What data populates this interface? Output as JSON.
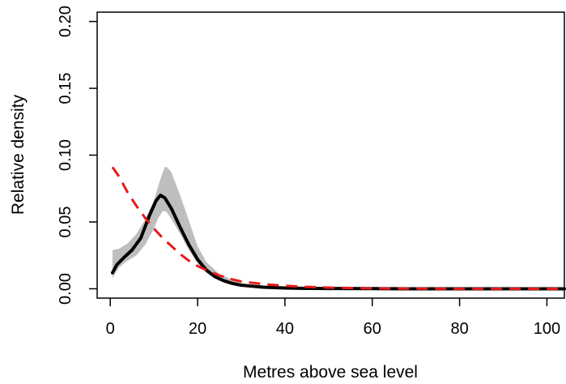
{
  "chart_data": {
    "type": "line",
    "title": "",
    "xlabel": "Metres above sea level",
    "ylabel": "Relative density",
    "xlim": [
      -3,
      104
    ],
    "ylim": [
      -0.007,
      0.207
    ],
    "xticks": [
      0,
      20,
      40,
      60,
      80,
      100
    ],
    "yticks": [
      0.0,
      0.05,
      0.1,
      0.15,
      0.2
    ],
    "xtick_labels": [
      "0",
      "20",
      "40",
      "60",
      "80",
      "100"
    ],
    "ytick_labels": [
      "0.00",
      "0.05",
      "0.10",
      "0.15",
      "0.20"
    ],
    "grid": false,
    "legend": "none",
    "band": {
      "color": "#bebebe",
      "x": [
        0.5,
        2,
        4,
        6,
        8,
        10,
        11,
        12,
        12.5,
        13,
        14,
        16,
        18,
        20,
        22,
        25,
        30,
        35,
        40,
        50,
        60,
        80,
        104
      ],
      "lower": [
        0.008,
        0.016,
        0.021,
        0.025,
        0.033,
        0.045,
        0.053,
        0.058,
        0.058,
        0.057,
        0.052,
        0.041,
        0.029,
        0.019,
        0.012,
        0.006,
        0.002,
        0.001,
        0.0004,
        0.0001,
        0.0,
        0.0,
        0.0
      ],
      "upper": [
        0.029,
        0.03,
        0.034,
        0.041,
        0.052,
        0.066,
        0.077,
        0.087,
        0.091,
        0.091,
        0.087,
        0.07,
        0.051,
        0.032,
        0.02,
        0.011,
        0.004,
        0.0018,
        0.0008,
        0.0002,
        0.0001,
        0.0,
        0.0
      ]
    },
    "series": [
      {
        "style": "solid",
        "color": "#000000",
        "x": [
          0.5,
          1.5,
          3,
          5,
          7,
          9,
          10.5,
          11.5,
          12.5,
          14,
          16,
          18,
          20,
          22,
          24,
          26,
          28,
          30,
          35,
          40,
          45,
          50,
          60,
          70,
          80,
          90,
          104
        ],
        "y": [
          0.012,
          0.018,
          0.023,
          0.029,
          0.038,
          0.055,
          0.066,
          0.07,
          0.068,
          0.06,
          0.046,
          0.033,
          0.022,
          0.014,
          0.009,
          0.006,
          0.004,
          0.0027,
          0.0012,
          0.0006,
          0.0003,
          0.0002,
          0.0001,
          0.0,
          0.0,
          0.0,
          0.0
        ]
      },
      {
        "style": "dashed",
        "color": "#e8191a",
        "x": [
          0.5,
          2,
          4,
          6,
          8,
          10,
          12,
          14,
          16,
          18,
          20,
          22,
          25,
          28,
          30,
          35,
          40,
          45,
          50,
          60,
          70,
          80,
          90,
          104
        ],
        "y": [
          0.091,
          0.084,
          0.072,
          0.062,
          0.053,
          0.045,
          0.038,
          0.032,
          0.026,
          0.021,
          0.017,
          0.014,
          0.01,
          0.007,
          0.0055,
          0.0035,
          0.0022,
          0.0014,
          0.0009,
          0.0003,
          0.0001,
          0.0,
          0.0,
          0.0
        ]
      }
    ]
  }
}
